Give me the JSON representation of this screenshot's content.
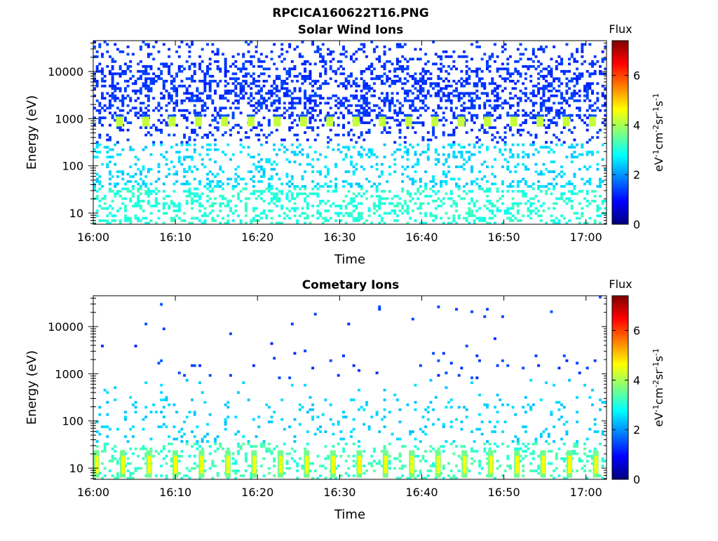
{
  "figure_title": "RPCICA160622T16.PNG",
  "colors": {
    "colormap": [
      "#00007f",
      "#0000ff",
      "#007fff",
      "#00ffff",
      "#7fff7f",
      "#ffff00",
      "#ff7f00",
      "#ff0000",
      "#7f0000"
    ]
  },
  "chart_data": [
    {
      "type": "heatmap",
      "title": "Solar Wind Ions",
      "xlabel": "Time",
      "ylabel": "Energy (eV)",
      "x_ticks": [
        "16:00",
        "16:10",
        "16:20",
        "16:30",
        "16:40",
        "16:50",
        "17:00"
      ],
      "x_tick_minutes": [
        0,
        10,
        20,
        30,
        40,
        50,
        60
      ],
      "xlim_minutes": [
        0,
        62.5
      ],
      "y_scale": "log",
      "ylim": [
        5.8,
        45000
      ],
      "y_ticks": [
        "10",
        "100",
        "1000",
        "10000"
      ],
      "y_tick_values": [
        10,
        100,
        1000,
        10000
      ],
      "colorbar": {
        "title": "Flux",
        "label": "eV-1cm-2sr-1s-1",
        "ticks": [
          "0",
          "2",
          "4",
          "6"
        ],
        "tick_values": [
          0,
          2,
          4,
          6
        ],
        "range": [
          0,
          7.4
        ]
      },
      "peak_energy_ev": 900,
      "peak_flux": 4.2,
      "peak_times_minutes": [
        3.2,
        6.4,
        9.6,
        12.8,
        16.0,
        19.2,
        22.4,
        25.6,
        28.8,
        32.0,
        35.2,
        38.4,
        41.6,
        44.8,
        48.0,
        51.2,
        54.4,
        57.6,
        60.8
      ]
    },
    {
      "type": "heatmap",
      "title": "Cometary Ions",
      "xlabel": "Time",
      "ylabel": "Energy (eV)",
      "x_ticks": [
        "16:00",
        "16:10",
        "16:20",
        "16:30",
        "16:40",
        "16:50",
        "17:00"
      ],
      "x_tick_minutes": [
        0,
        10,
        20,
        30,
        40,
        50,
        60
      ],
      "xlim_minutes": [
        0,
        62.5
      ],
      "y_scale": "log",
      "ylim": [
        5.8,
        45000
      ],
      "y_ticks": [
        "10",
        "100",
        "1000",
        "10000"
      ],
      "y_tick_values": [
        10,
        100,
        1000,
        10000
      ],
      "colorbar": {
        "title": "Flux",
        "label": "eV-1cm-2sr-1s-1",
        "ticks": [
          "0",
          "2",
          "4",
          "6"
        ],
        "tick_values": [
          0,
          2,
          4,
          6
        ],
        "range": [
          0,
          7.4
        ]
      },
      "peak_energy_ev": 11,
      "peak_flux": 4.6,
      "peak_times_minutes": [
        0.3,
        3.5,
        6.7,
        9.9,
        13.1,
        16.3,
        19.5,
        22.7,
        25.9,
        29.1,
        32.3,
        35.5,
        38.7,
        41.9,
        45.1,
        48.3,
        51.5,
        54.7,
        57.9,
        61.1
      ]
    }
  ]
}
